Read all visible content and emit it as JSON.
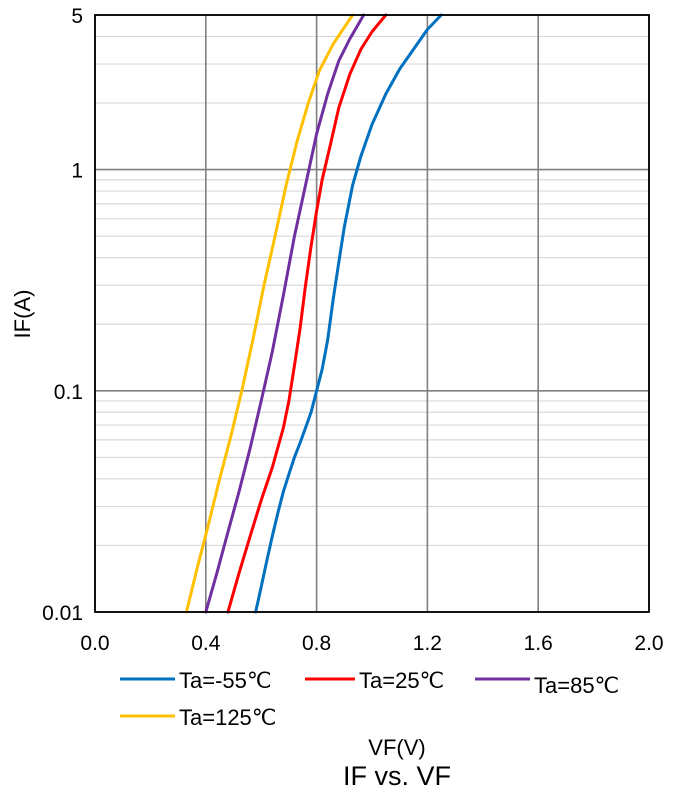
{
  "chart_data": {
    "type": "line",
    "title": "IF vs. VF",
    "xlabel": "VF(V)",
    "ylabel": "IF(A)",
    "x_scale": "linear",
    "y_scale": "log",
    "xlim": [
      0.0,
      2.0
    ],
    "ylim": [
      0.01,
      5
    ],
    "x_ticks": [
      "0.0",
      "0.4",
      "0.8",
      "1.2",
      "1.6",
      "2.0"
    ],
    "y_ticks": [
      "0.01",
      "0.1",
      "1",
      "5"
    ],
    "grid": true,
    "legend_position": "bottom",
    "series": [
      {
        "name": "Ta=-55℃",
        "color": "#0070C0",
        "points": [
          [
            0.58,
            0.01
          ],
          [
            0.6,
            0.013
          ],
          [
            0.62,
            0.017
          ],
          [
            0.64,
            0.022
          ],
          [
            0.66,
            0.028
          ],
          [
            0.68,
            0.035
          ],
          [
            0.7,
            0.042
          ],
          [
            0.72,
            0.05
          ],
          [
            0.74,
            0.058
          ],
          [
            0.76,
            0.068
          ],
          [
            0.78,
            0.08
          ],
          [
            0.8,
            0.1
          ],
          [
            0.82,
            0.125
          ],
          [
            0.84,
            0.17
          ],
          [
            0.86,
            0.26
          ],
          [
            0.88,
            0.38
          ],
          [
            0.9,
            0.55
          ],
          [
            0.93,
            0.85
          ],
          [
            0.96,
            1.15
          ],
          [
            1.0,
            1.6
          ],
          [
            1.05,
            2.2
          ],
          [
            1.1,
            2.85
          ],
          [
            1.15,
            3.5
          ],
          [
            1.2,
            4.3
          ],
          [
            1.25,
            5.0
          ]
        ]
      },
      {
        "name": "Ta=25℃",
        "color": "#FF0000",
        "points": [
          [
            0.48,
            0.01
          ],
          [
            0.52,
            0.015
          ],
          [
            0.56,
            0.022
          ],
          [
            0.6,
            0.032
          ],
          [
            0.64,
            0.045
          ],
          [
            0.68,
            0.068
          ],
          [
            0.7,
            0.09
          ],
          [
            0.72,
            0.13
          ],
          [
            0.74,
            0.19
          ],
          [
            0.76,
            0.3
          ],
          [
            0.78,
            0.45
          ],
          [
            0.8,
            0.65
          ],
          [
            0.82,
            0.9
          ],
          [
            0.85,
            1.3
          ],
          [
            0.88,
            1.9
          ],
          [
            0.92,
            2.7
          ],
          [
            0.96,
            3.5
          ],
          [
            1.0,
            4.2
          ],
          [
            1.05,
            5.0
          ]
        ]
      },
      {
        "name": "Ta=85℃",
        "color": "#7030A0",
        "points": [
          [
            0.4,
            0.01
          ],
          [
            0.44,
            0.015
          ],
          [
            0.48,
            0.023
          ],
          [
            0.52,
            0.035
          ],
          [
            0.56,
            0.055
          ],
          [
            0.6,
            0.09
          ],
          [
            0.64,
            0.15
          ],
          [
            0.68,
            0.27
          ],
          [
            0.72,
            0.5
          ],
          [
            0.76,
            0.85
          ],
          [
            0.8,
            1.45
          ],
          [
            0.84,
            2.2
          ],
          [
            0.88,
            3.1
          ],
          [
            0.92,
            3.9
          ],
          [
            0.97,
            5.0
          ]
        ]
      },
      {
        "name": "Ta=125℃",
        "color": "#FFC000",
        "points": [
          [
            0.33,
            0.01
          ],
          [
            0.37,
            0.016
          ],
          [
            0.41,
            0.025
          ],
          [
            0.45,
            0.04
          ],
          [
            0.49,
            0.062
          ],
          [
            0.53,
            0.1
          ],
          [
            0.57,
            0.17
          ],
          [
            0.61,
            0.3
          ],
          [
            0.65,
            0.5
          ],
          [
            0.69,
            0.85
          ],
          [
            0.73,
            1.35
          ],
          [
            0.77,
            2.0
          ],
          [
            0.81,
            2.8
          ],
          [
            0.86,
            3.7
          ],
          [
            0.93,
            5.0
          ]
        ]
      }
    ]
  }
}
